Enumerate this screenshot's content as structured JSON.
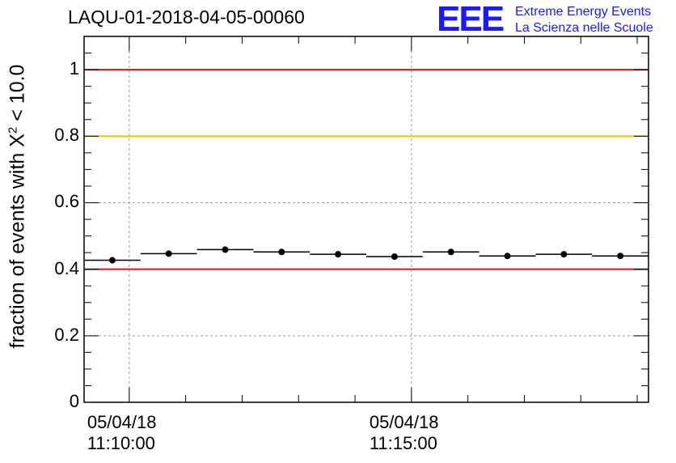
{
  "title": "LAQU-01-2018-04-05-00060",
  "logo": {
    "mark": "EEE",
    "line1": "Extreme Energy Events",
    "line2": "La Scienza nelle Scuole"
  },
  "ylabel": {
    "prefix": "fraction of events with X",
    "sup": "2",
    "suffix": " < 10.0"
  },
  "colors": {
    "red_line": "#e01010",
    "yellow_line": "#ffc000",
    "grid": "#999999",
    "logo": "#1a1aff"
  },
  "chart_data": {
    "type": "scatter",
    "title": "LAQU-01-2018-04-05-00060",
    "xlabel": "",
    "ylabel": "fraction of events with X^2 < 10.0",
    "xlim_minutes": [
      9.2,
      19.2
    ],
    "ylim": [
      0,
      1.1
    ],
    "grid": true,
    "y_ticks": [
      0,
      0.2,
      0.4,
      0.6,
      0.8,
      1
    ],
    "y_tick_labels": [
      "0",
      "0.2",
      "0.4",
      "0.6",
      "0.8",
      "1"
    ],
    "x_major_ticks_minutes": [
      10,
      15
    ],
    "x_tick_labels": [
      {
        "date": "05/04/18",
        "time": "11:10:00"
      },
      {
        "date": "05/04/18",
        "time": "11:15:00"
      }
    ],
    "reference_lines": [
      {
        "y": 1.0,
        "color": "red"
      },
      {
        "y": 0.8,
        "color": "yellow"
      },
      {
        "y": 0.4,
        "color": "red"
      }
    ],
    "points": [
      {
        "x_start": 9.2,
        "x_end": 10.2,
        "y": 0.427
      },
      {
        "x_start": 10.2,
        "x_end": 11.2,
        "y": 0.447
      },
      {
        "x_start": 11.2,
        "x_end": 12.2,
        "y": 0.459
      },
      {
        "x_start": 12.2,
        "x_end": 13.2,
        "y": 0.452
      },
      {
        "x_start": 13.2,
        "x_end": 14.2,
        "y": 0.445
      },
      {
        "x_start": 14.2,
        "x_end": 15.2,
        "y": 0.438
      },
      {
        "x_start": 15.2,
        "x_end": 16.2,
        "y": 0.452
      },
      {
        "x_start": 16.2,
        "x_end": 17.2,
        "y": 0.44
      },
      {
        "x_start": 17.2,
        "x_end": 18.2,
        "y": 0.445
      },
      {
        "x_start": 18.2,
        "x_end": 19.2,
        "y": 0.44
      }
    ]
  }
}
